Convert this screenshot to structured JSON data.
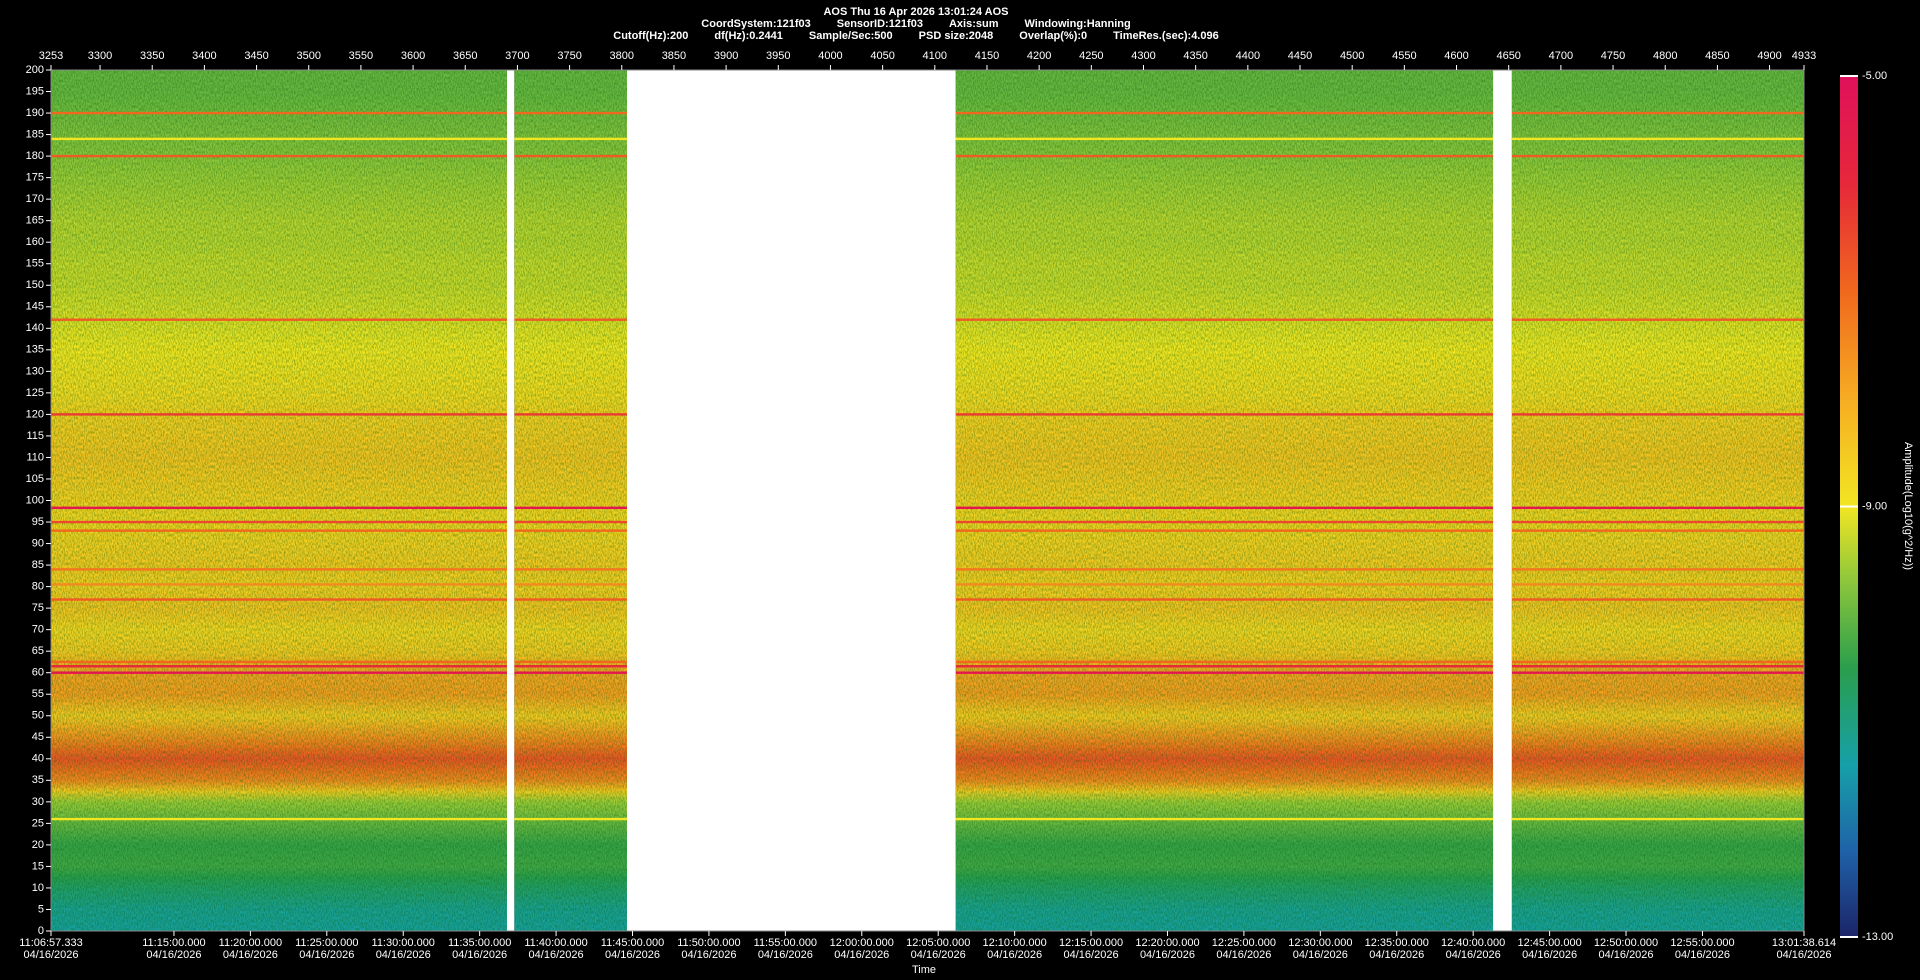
{
  "chart_data": {
    "type": "spectrogram",
    "title": "AOS  Thu 16 Apr 2026 13:01:24  AOS",
    "subtitle": [
      "CoordSystem:121f03",
      "SensorID:121f03",
      "Axis:sum",
      "Windowing:Hanning"
    ],
    "parameters": [
      "Cutoff(Hz):200",
      "df(Hz):0.2441",
      "Sample/Sec:500",
      "PSD size:2048",
      "Overlap(%):0",
      "TimeRes.(sec):4.096"
    ],
    "x_label": "Time",
    "colorbar_label": "Amplitude(Log10(g^2/Hz))",
    "x2lim": [
      3253,
      4933
    ],
    "x2ticks": [
      3253,
      3300,
      3350,
      3400,
      3450,
      3500,
      3550,
      3600,
      3650,
      3700,
      3750,
      3800,
      3850,
      3900,
      3950,
      4000,
      4050,
      4100,
      4150,
      4200,
      4250,
      4300,
      4350,
      4400,
      4450,
      4500,
      4550,
      4600,
      4650,
      4700,
      4750,
      4800,
      4850,
      4900,
      4933
    ],
    "xlim": [
      40017.333,
      46898.614
    ],
    "xticks": [
      {
        "value": 40017.333,
        "label": "11:06:57.333",
        "date": "04/16/2026"
      },
      {
        "value": 40500,
        "label": "11:15:00.000",
        "date": "04/16/2026"
      },
      {
        "value": 40800,
        "label": "11:20:00.000",
        "date": "04/16/2026"
      },
      {
        "value": 41100,
        "label": "11:25:00.000",
        "date": "04/16/2026"
      },
      {
        "value": 41400,
        "label": "11:30:00.000",
        "date": "04/16/2026"
      },
      {
        "value": 41700,
        "label": "11:35:00.000",
        "date": "04/16/2026"
      },
      {
        "value": 42000,
        "label": "11:40:00.000",
        "date": "04/16/2026"
      },
      {
        "value": 42300,
        "label": "11:45:00.000",
        "date": "04/16/2026"
      },
      {
        "value": 42600,
        "label": "11:50:00.000",
        "date": "04/16/2026"
      },
      {
        "value": 42900,
        "label": "11:55:00.000",
        "date": "04/16/2026"
      },
      {
        "value": 43200,
        "label": "12:00:00.000",
        "date": "04/16/2026"
      },
      {
        "value": 43500,
        "label": "12:05:00.000",
        "date": "04/16/2026"
      },
      {
        "value": 43800,
        "label": "12:10:00.000",
        "date": "04/16/2026"
      },
      {
        "value": 44100,
        "label": "12:15:00.000",
        "date": "04/16/2026"
      },
      {
        "value": 44400,
        "label": "12:20:00.000",
        "date": "04/16/2026"
      },
      {
        "value": 44700,
        "label": "12:25:00.000",
        "date": "04/16/2026"
      },
      {
        "value": 45000,
        "label": "12:30:00.000",
        "date": "04/16/2026"
      },
      {
        "value": 45300,
        "label": "12:35:00.000",
        "date": "04/16/2026"
      },
      {
        "value": 45600,
        "label": "12:40:00.000",
        "date": "04/16/2026"
      },
      {
        "value": 45900,
        "label": "12:45:00.000",
        "date": "04/16/2026"
      },
      {
        "value": 46200,
        "label": "12:50:00.000",
        "date": "04/16/2026"
      },
      {
        "value": 46500,
        "label": "12:55:00.000",
        "date": "04/16/2026"
      },
      {
        "value": 46898.614,
        "label": "13:01:38.614",
        "date": "04/16/2026"
      }
    ],
    "ylim": [
      0,
      200
    ],
    "yticks": [
      0,
      5,
      10,
      15,
      20,
      25,
      30,
      35,
      40,
      45,
      50,
      55,
      60,
      65,
      70,
      75,
      80,
      85,
      90,
      95,
      100,
      105,
      110,
      115,
      120,
      125,
      130,
      135,
      140,
      145,
      150,
      155,
      160,
      165,
      170,
      175,
      180,
      185,
      190,
      195,
      200
    ],
    "segments": [
      [
        3253,
        3690
      ],
      [
        3697,
        3805
      ],
      [
        4120,
        4635
      ],
      [
        4653,
        4933
      ]
    ],
    "profile": {
      "frequency": [
        0,
        5,
        10,
        15,
        20,
        25,
        30,
        35,
        40,
        45,
        50,
        55,
        60,
        65,
        70,
        75,
        80,
        85,
        90,
        95,
        100,
        105,
        110,
        115,
        120,
        125,
        130,
        135,
        140,
        145,
        150,
        155,
        160,
        165,
        170,
        175,
        180,
        185,
        190,
        195,
        200
      ],
      "amplitude": [
        -11.3,
        -11.2,
        -10.8,
        -10.3,
        -10.4,
        -10.0,
        -9.6,
        -7.5,
        -6.7,
        -7.6,
        -8.5,
        -7.8,
        -7.9,
        -8.5,
        -8.7,
        -8.4,
        -8.6,
        -8.5,
        -8.6,
        -8.7,
        -8.6,
        -8.5,
        -8.4,
        -8.5,
        -8.6,
        -8.8,
        -8.9,
        -9.0,
        -9.1,
        -9.2,
        -9.3,
        -9.3,
        -9.4,
        -9.4,
        -9.5,
        -9.6,
        -9.7,
        -9.8,
        -9.9,
        -10.0,
        -10.0
      ]
    },
    "lines": [
      {
        "frequency": 26,
        "amplitude": -9.0
      },
      {
        "frequency": 60,
        "amplitude": -5.3
      },
      {
        "frequency": 61.5,
        "amplitude": -6.0
      },
      {
        "frequency": 62.5,
        "amplitude": -7.0
      },
      {
        "frequency": 77,
        "amplitude": -6.8
      },
      {
        "frequency": 80.5,
        "amplitude": -7.5
      },
      {
        "frequency": 84,
        "amplitude": -7.2
      },
      {
        "frequency": 93,
        "amplitude": -7.0
      },
      {
        "frequency": 95,
        "amplitude": -6.5
      },
      {
        "frequency": 98.3,
        "amplitude": -5.3
      },
      {
        "frequency": 120,
        "amplitude": -6.3
      },
      {
        "frequency": 142,
        "amplitude": -6.8
      },
      {
        "frequency": 180,
        "amplitude": -6.8
      },
      {
        "frequency": 184,
        "amplitude": -9.0
      },
      {
        "frequency": 190,
        "amplitude": -7.0
      }
    ],
    "clim": [
      -13,
      -5
    ],
    "cticks": [
      {
        "value": -5,
        "label": "-5.00"
      },
      {
        "value": -9,
        "label": "-9.00"
      },
      {
        "value": -13,
        "label": "-13.00"
      }
    ],
    "colorscale": [
      {
        "value": -13,
        "color": "#1c2468"
      },
      {
        "value": -12.2,
        "color": "#1f62a8"
      },
      {
        "value": -11.4,
        "color": "#16a0a8"
      },
      {
        "value": -10.5,
        "color": "#2a9e4c"
      },
      {
        "value": -9.7,
        "color": "#8cc63c"
      },
      {
        "value": -9,
        "color": "#f2e622"
      },
      {
        "value": -8,
        "color": "#f6ac22"
      },
      {
        "value": -7,
        "color": "#f0681e"
      },
      {
        "value": -6,
        "color": "#e6283a"
      },
      {
        "value": -5,
        "color": "#e0105a"
      }
    ]
  }
}
